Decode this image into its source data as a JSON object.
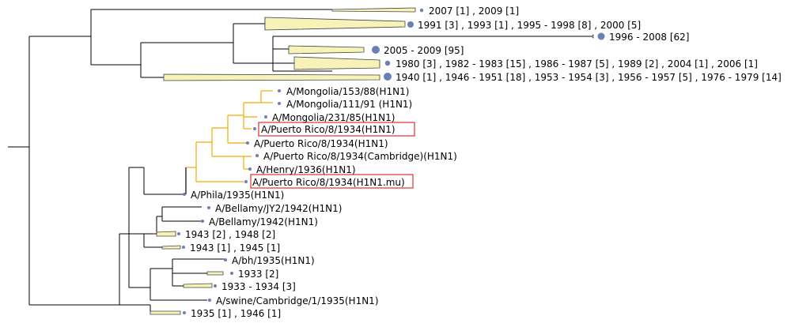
{
  "colors": {
    "branch": "#000000",
    "highlight_branch": "#f2a900",
    "collapsed_fill": "#f7f3b8",
    "collapsed_stroke": "#444444",
    "node_dot": "#6a7fb5",
    "box_outline": "#e03030"
  },
  "tree": {
    "collapsed_labels": [
      "2007 [1] , 2009 [1]",
      "1991 [3] , 1993 [1] , 1995 - 1998 [8] , 2000 [5]",
      "1996 - 2008 [62]",
      "2005 - 2009 [95]",
      "1980 [3] , 1982 - 1983 [15] , 1986 - 1987 [5] , 1989 [2] , 2004 [1] , 2006 [1]",
      "1940 [1] , 1946 - 1951 [18] , 1953 - 1954 [3] , 1956 - 1957 [5] , 1976 - 1979 [14]"
    ],
    "leaves": [
      "A/Mongolia/153/88(H1N1)",
      "A/Mongolia/111/91 (H1N1)",
      "A/Mongolia/231/85(H1N1)",
      "A/Puerto Rico/8/1934(H1N1)",
      "A/Puerto Rico/8/1934(H1N1)",
      "A/Puerto Rico/8/1934(Cambridge)(H1N1)",
      "A/Henry/1936(H1N1)",
      "A/Puerto Rico/8/1934(H1N1.mu)",
      "A/Phila/1935(H1N1)",
      "A/Bellamy/JY2/1942(H1N1)",
      "A/Bellamy/1942(H1N1)",
      "1943 [2] , 1948 [2]",
      "1943 [1] , 1945 [1]",
      "A/bh/1935(H1N1)",
      "1933 [2]",
      "1933 - 1934 [3]",
      "A/swine/Cambridge/1/1935(H1N1)",
      "1935 [1] , 1946 [1]"
    ]
  }
}
